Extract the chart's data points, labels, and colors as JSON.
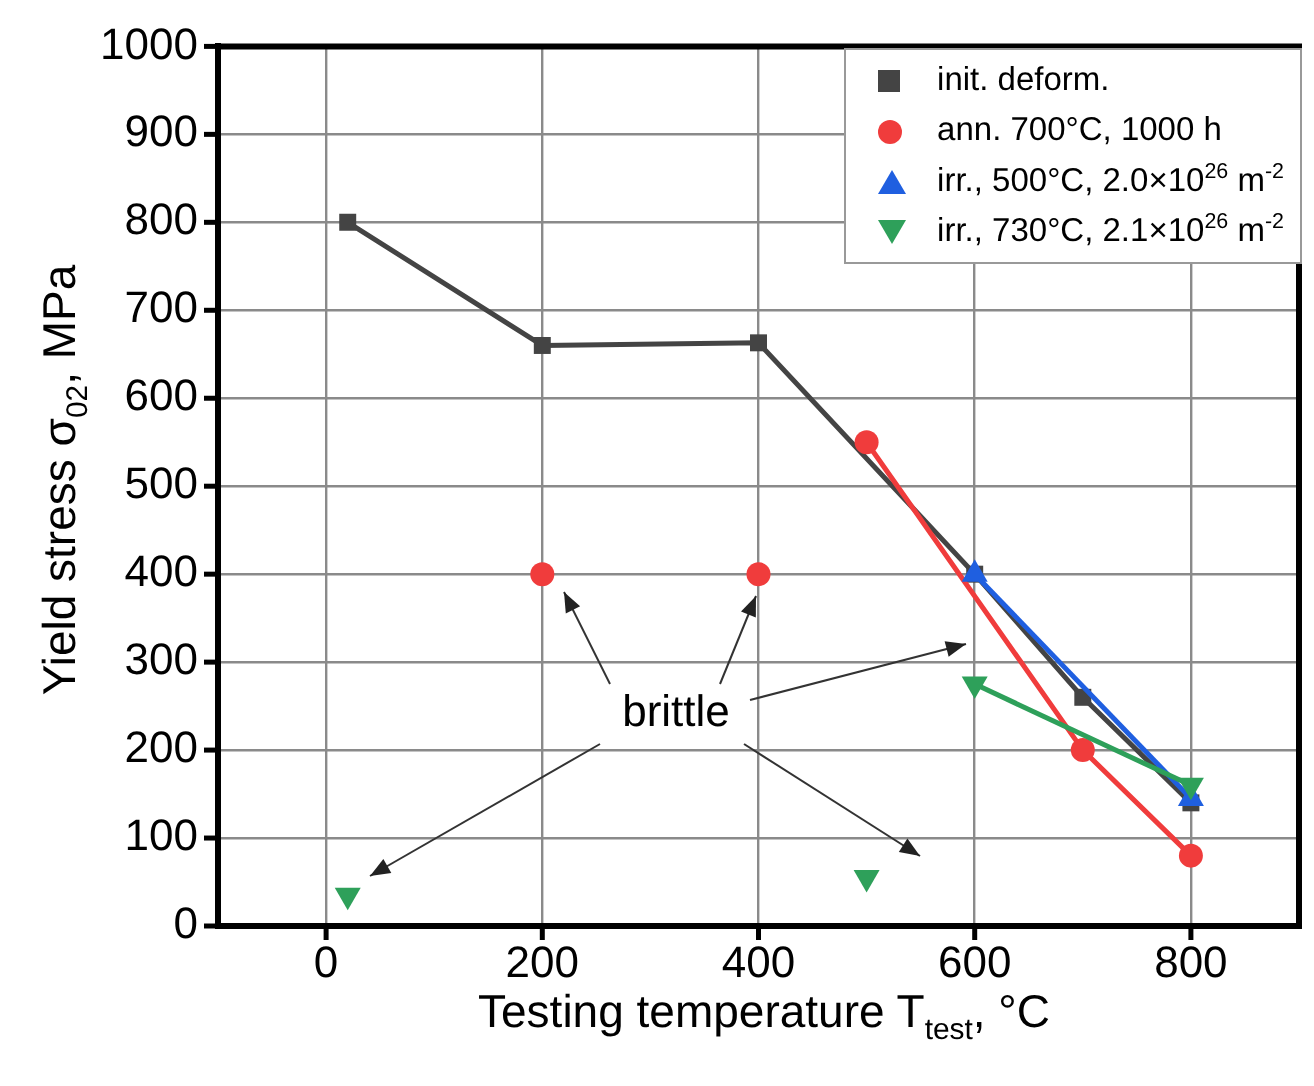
{
  "chart_data": {
    "type": "line",
    "xlabel": "Testing temperature T$_{test}$, °C",
    "ylabel": "Yield stress σ$_{02}$, MPa",
    "xlim": [
      -100,
      900
    ],
    "xticks": [
      0,
      200,
      400,
      600,
      800
    ],
    "ylim": [
      0,
      1000
    ],
    "yticks": [
      0,
      100,
      200,
      300,
      400,
      500,
      600,
      700,
      800,
      900,
      1000
    ],
    "grid": true,
    "legend": "top right",
    "annotations": [
      "brittle"
    ],
    "series": [
      {
        "name": "init. deform.",
        "marker": "square",
        "color": "#444444",
        "x": [
          20,
          200,
          400,
          600,
          700,
          800
        ],
        "values": [
          800,
          660,
          663,
          400,
          260,
          140
        ]
      },
      {
        "name": "ann. 700°C, 1000 h",
        "marker": "circle",
        "color": "#f03c3c",
        "x": [
          500,
          700,
          800
        ],
        "values": [
          550,
          200,
          80
        ]
      },
      {
        "type": "scatter",
        "marker": "circle",
        "color": "#f03c3c",
        "x": [
          200,
          400
        ],
        "values": [
          400,
          400
        ]
      },
      {
        "name": "irr., 500°C, 2.0×10$^{26}$ m$^{-2}$",
        "marker": "triangle",
        "color": "#1f5fe0",
        "x": [
          600,
          800
        ],
        "values": [
          400,
          145
        ]
      },
      {
        "name": "irr., 730°C, 2.1×10$^{26}$ m$^{-2}$",
        "marker": "triangle-down",
        "color": "#2ea05a",
        "x": [
          600,
          800
        ],
        "values": [
          275,
          160
        ]
      },
      {
        "type": "scatter",
        "marker": "triangle-down",
        "color": "#2ea05a",
        "x": [
          20,
          500
        ],
        "values": [
          35,
          55
        ]
      }
    ]
  }
}
